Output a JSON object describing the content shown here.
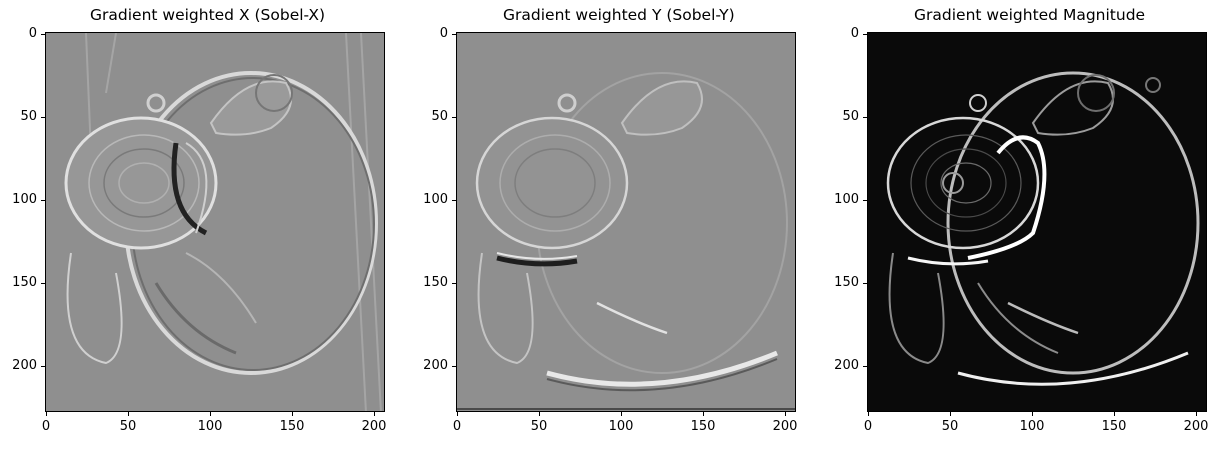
{
  "panels": [
    {
      "title": "Gradient weighted X (Sobel-X)",
      "colormap": "gray",
      "style": "relief-x",
      "xticks": [
        "0",
        "50",
        "100",
        "150",
        "200"
      ],
      "yticks": [
        "0",
        "50",
        "100",
        "150",
        "200"
      ]
    },
    {
      "title": "Gradient weighted Y (Sobel-Y)",
      "colormap": "gray",
      "style": "relief-y",
      "xticks": [
        "0",
        "50",
        "100",
        "150",
        "200"
      ],
      "yticks": [
        "0",
        "50",
        "100",
        "150",
        "200"
      ]
    },
    {
      "title": "Gradient weighted Magnitude",
      "colormap": "gray",
      "style": "magnitude",
      "xticks": [
        "0",
        "50",
        "100",
        "150",
        "200"
      ],
      "yticks": [
        "0",
        "50",
        "100",
        "150",
        "200"
      ]
    }
  ],
  "image_extent": {
    "x_max": 205,
    "y_max": 229
  },
  "colors": {
    "relief_background": "#8f8f8f",
    "magnitude_background": "#0a0a0a"
  }
}
